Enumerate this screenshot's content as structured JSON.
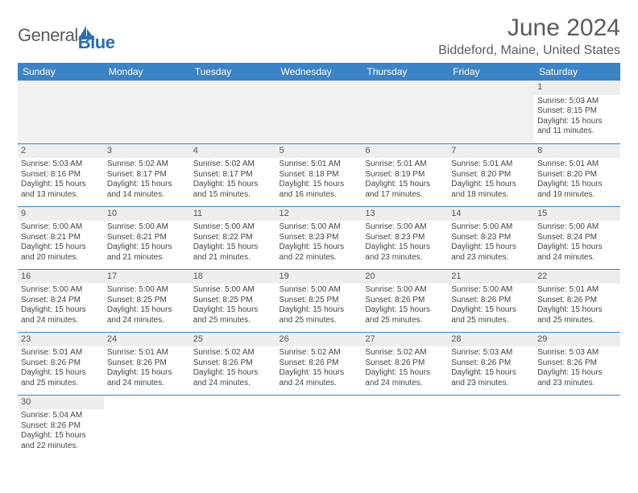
{
  "logo": {
    "part1": "General",
    "part2": "Blue"
  },
  "title": "June 2024",
  "location": "Biddeford, Maine, United States",
  "colors": {
    "header_bg": "#3b83c7",
    "header_text": "#ffffff",
    "daynum_bg": "#eeeeee",
    "border": "#3b83c7",
    "logo_gray": "#5b5b5b",
    "logo_blue": "#2a6db8"
  },
  "daysOfWeek": [
    "Sunday",
    "Monday",
    "Tuesday",
    "Wednesday",
    "Thursday",
    "Friday",
    "Saturday"
  ],
  "labels": {
    "sunrise": "Sunrise:",
    "sunset": "Sunset:",
    "daylight": "Daylight:"
  },
  "weeks": [
    [
      null,
      null,
      null,
      null,
      null,
      null,
      {
        "n": "1",
        "sr": "5:03 AM",
        "ss": "8:15 PM",
        "dl": "15 hours and 11 minutes."
      }
    ],
    [
      {
        "n": "2",
        "sr": "5:03 AM",
        "ss": "8:16 PM",
        "dl": "15 hours and 13 minutes."
      },
      {
        "n": "3",
        "sr": "5:02 AM",
        "ss": "8:17 PM",
        "dl": "15 hours and 14 minutes."
      },
      {
        "n": "4",
        "sr": "5:02 AM",
        "ss": "8:17 PM",
        "dl": "15 hours and 15 minutes."
      },
      {
        "n": "5",
        "sr": "5:01 AM",
        "ss": "8:18 PM",
        "dl": "15 hours and 16 minutes."
      },
      {
        "n": "6",
        "sr": "5:01 AM",
        "ss": "8:19 PM",
        "dl": "15 hours and 17 minutes."
      },
      {
        "n": "7",
        "sr": "5:01 AM",
        "ss": "8:20 PM",
        "dl": "15 hours and 18 minutes."
      },
      {
        "n": "8",
        "sr": "5:01 AM",
        "ss": "8:20 PM",
        "dl": "15 hours and 19 minutes."
      }
    ],
    [
      {
        "n": "9",
        "sr": "5:00 AM",
        "ss": "8:21 PM",
        "dl": "15 hours and 20 minutes."
      },
      {
        "n": "10",
        "sr": "5:00 AM",
        "ss": "8:21 PM",
        "dl": "15 hours and 21 minutes."
      },
      {
        "n": "11",
        "sr": "5:00 AM",
        "ss": "8:22 PM",
        "dl": "15 hours and 21 minutes."
      },
      {
        "n": "12",
        "sr": "5:00 AM",
        "ss": "8:23 PM",
        "dl": "15 hours and 22 minutes."
      },
      {
        "n": "13",
        "sr": "5:00 AM",
        "ss": "8:23 PM",
        "dl": "15 hours and 23 minutes."
      },
      {
        "n": "14",
        "sr": "5:00 AM",
        "ss": "8:23 PM",
        "dl": "15 hours and 23 minutes."
      },
      {
        "n": "15",
        "sr": "5:00 AM",
        "ss": "8:24 PM",
        "dl": "15 hours and 24 minutes."
      }
    ],
    [
      {
        "n": "16",
        "sr": "5:00 AM",
        "ss": "8:24 PM",
        "dl": "15 hours and 24 minutes."
      },
      {
        "n": "17",
        "sr": "5:00 AM",
        "ss": "8:25 PM",
        "dl": "15 hours and 24 minutes."
      },
      {
        "n": "18",
        "sr": "5:00 AM",
        "ss": "8:25 PM",
        "dl": "15 hours and 25 minutes."
      },
      {
        "n": "19",
        "sr": "5:00 AM",
        "ss": "8:25 PM",
        "dl": "15 hours and 25 minutes."
      },
      {
        "n": "20",
        "sr": "5:00 AM",
        "ss": "8:26 PM",
        "dl": "15 hours and 25 minutes."
      },
      {
        "n": "21",
        "sr": "5:00 AM",
        "ss": "8:26 PM",
        "dl": "15 hours and 25 minutes."
      },
      {
        "n": "22",
        "sr": "5:01 AM",
        "ss": "8:26 PM",
        "dl": "15 hours and 25 minutes."
      }
    ],
    [
      {
        "n": "23",
        "sr": "5:01 AM",
        "ss": "8:26 PM",
        "dl": "15 hours and 25 minutes."
      },
      {
        "n": "24",
        "sr": "5:01 AM",
        "ss": "8:26 PM",
        "dl": "15 hours and 24 minutes."
      },
      {
        "n": "25",
        "sr": "5:02 AM",
        "ss": "8:26 PM",
        "dl": "15 hours and 24 minutes."
      },
      {
        "n": "26",
        "sr": "5:02 AM",
        "ss": "8:26 PM",
        "dl": "15 hours and 24 minutes."
      },
      {
        "n": "27",
        "sr": "5:02 AM",
        "ss": "8:26 PM",
        "dl": "15 hours and 24 minutes."
      },
      {
        "n": "28",
        "sr": "5:03 AM",
        "ss": "8:26 PM",
        "dl": "15 hours and 23 minutes."
      },
      {
        "n": "29",
        "sr": "5:03 AM",
        "ss": "8:26 PM",
        "dl": "15 hours and 23 minutes."
      }
    ],
    [
      {
        "n": "30",
        "sr": "5:04 AM",
        "ss": "8:26 PM",
        "dl": "15 hours and 22 minutes."
      },
      null,
      null,
      null,
      null,
      null,
      null
    ]
  ]
}
